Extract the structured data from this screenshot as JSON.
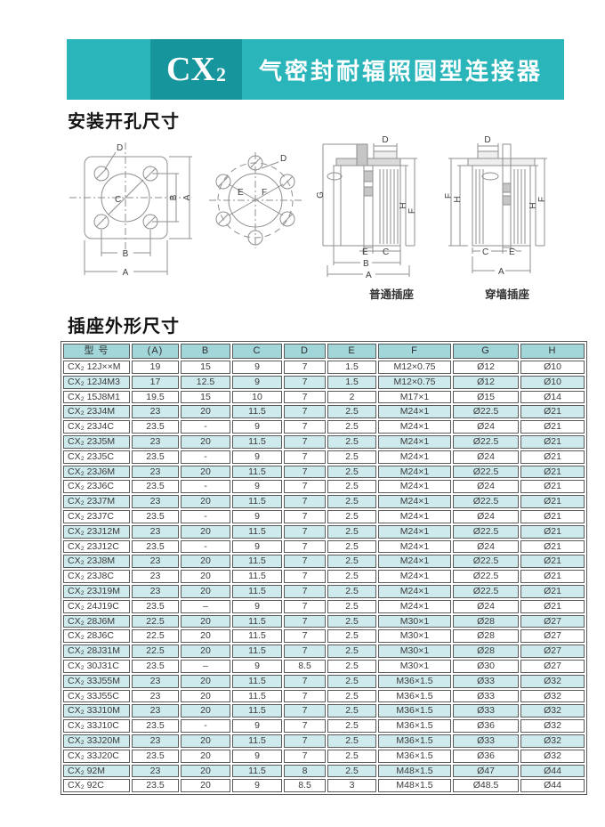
{
  "banner": {
    "product_code": "CX",
    "product_code_sub": "2",
    "title": "气密封耐辐照圆型连接器"
  },
  "sections": {
    "mounting_heading": "安装开孔尺寸",
    "outline_heading": "插座外形尺寸"
  },
  "drawings": {
    "dims": {
      "A": "A",
      "B": "B",
      "C": "C",
      "D": "D",
      "E": "E",
      "F": "F",
      "G": "G",
      "H": "H"
    },
    "captions": {
      "normal": "普通插座",
      "through_wall": "穿墙插座"
    }
  },
  "colors": {
    "banner_teal": "#29b5ba",
    "banner_dark": "#17959c",
    "table_header_bg": "#a3d6d9",
    "table_stripe_bg": "#cfeaec",
    "border": "#5a5a5a"
  },
  "table": {
    "columns": [
      "型 号",
      "(A)",
      "B",
      "C",
      "D",
      "E",
      "F",
      "G",
      "H"
    ],
    "rows": [
      [
        "CX₂ 12J××M",
        "19",
        "15",
        "9",
        "7",
        "1.5",
        "M12×0.75",
        "Ø12",
        "Ø10"
      ],
      [
        "CX₂ 12J4M3",
        "17",
        "12.5",
        "9",
        "7",
        "1.5",
        "M12×0.75",
        "Ø12",
        "Ø10"
      ],
      [
        "CX₂ 15J8M1",
        "19.5",
        "15",
        "10",
        "7",
        "2",
        "M17×1",
        "Ø15",
        "Ø14"
      ],
      [
        "CX₂ 23J4M",
        "23",
        "20",
        "11.5",
        "7",
        "2.5",
        "M24×1",
        "Ø22.5",
        "Ø21"
      ],
      [
        "CX₂ 23J4C",
        "23.5",
        "-",
        "9",
        "7",
        "2.5",
        "M24×1",
        "Ø24",
        "Ø21"
      ],
      [
        "CX₂ 23J5M",
        "23",
        "20",
        "11.5",
        "7",
        "2.5",
        "M24×1",
        "Ø22.5",
        "Ø21"
      ],
      [
        "CX₂ 23J5C",
        "23.5",
        "-",
        "9",
        "7",
        "2.5",
        "M24×1",
        "Ø24",
        "Ø21"
      ],
      [
        "CX₂ 23J6M",
        "23",
        "20",
        "11.5",
        "7",
        "2.5",
        "M24×1",
        "Ø22.5",
        "Ø21"
      ],
      [
        "CX₂ 23J6C",
        "23.5",
        "-",
        "9",
        "7",
        "2.5",
        "M24×1",
        "Ø24",
        "Ø21"
      ],
      [
        "CX₂ 23J7M",
        "23",
        "20",
        "11.5",
        "7",
        "2.5",
        "M24×1",
        "Ø22.5",
        "Ø21"
      ],
      [
        "CX₂ 23J7C",
        "23.5",
        "-",
        "9",
        "7",
        "2.5",
        "M24×1",
        "Ø24",
        "Ø21"
      ],
      [
        "CX₂ 23J12M",
        "23",
        "20",
        "11.5",
        "7",
        "2.5",
        "M24×1",
        "Ø22.5",
        "Ø21"
      ],
      [
        "CX₂ 23J12C",
        "23.5",
        "-",
        "9",
        "7",
        "2.5",
        "M24×1",
        "Ø24",
        "Ø21"
      ],
      [
        "CX₂ 23J8M",
        "23",
        "20",
        "11.5",
        "7",
        "2.5",
        "M24×1",
        "Ø22.5",
        "Ø21"
      ],
      [
        "CX₂ 23J8C",
        "23",
        "20",
        "11.5",
        "7",
        "2.5",
        "M24×1",
        "Ø22.5",
        "Ø21"
      ],
      [
        "CX₂ 23J19M",
        "23",
        "20",
        "11.5",
        "7",
        "2.5",
        "M24×1",
        "Ø22.5",
        "Ø21"
      ],
      [
        "CX₂ 24J19C",
        "23.5",
        "–",
        "9",
        "7",
        "2.5",
        "M24×1",
        "Ø24",
        "Ø21"
      ],
      [
        "CX₂ 28J6M",
        "22.5",
        "20",
        "11.5",
        "7",
        "2.5",
        "M30×1",
        "Ø28",
        "Ø27"
      ],
      [
        "CX₂ 28J6C",
        "22.5",
        "20",
        "11.5",
        "7",
        "2.5",
        "M30×1",
        "Ø28",
        "Ø27"
      ],
      [
        "CX₂ 28J31M",
        "22.5",
        "20",
        "11.5",
        "7",
        "2.5",
        "M30×1",
        "Ø28",
        "Ø27"
      ],
      [
        "CX₂ 30J31C",
        "23.5",
        "–",
        "9",
        "8.5",
        "2.5",
        "M30×1",
        "Ø30",
        "Ø27"
      ],
      [
        "CX₂ 33J55M",
        "23",
        "20",
        "11.5",
        "7",
        "2.5",
        "M36×1.5",
        "Ø33",
        "Ø32"
      ],
      [
        "CX₂ 33J55C",
        "23",
        "20",
        "11.5",
        "7",
        "2.5",
        "M36×1.5",
        "Ø33",
        "Ø32"
      ],
      [
        "CX₂ 33J10M",
        "23",
        "20",
        "11.5",
        "7",
        "2.5",
        "M36×1.5",
        "Ø33",
        "Ø32"
      ],
      [
        "CX₂ 33J10C",
        "23.5",
        "-",
        "9",
        "7",
        "2.5",
        "M36×1.5",
        "Ø36",
        "Ø32"
      ],
      [
        "CX₂ 33J20M",
        "23",
        "20",
        "11.5",
        "7",
        "2.5",
        "M36×1.5",
        "Ø33",
        "Ø32"
      ],
      [
        "CX₂ 33J20C",
        "23.5",
        "20",
        "9",
        "7",
        "2.5",
        "M36×1.5",
        "Ø36",
        "Ø32"
      ],
      [
        "CX₂ 92M",
        "23",
        "20",
        "11.5",
        "8",
        "2.5",
        "M48×1.5",
        "Ø47",
        "Ø44"
      ],
      [
        "CX₂ 92C",
        "23.5",
        "20",
        "9",
        "8.5",
        "3",
        "M48×1.5",
        "Ø48.5",
        "Ø44"
      ]
    ]
  }
}
